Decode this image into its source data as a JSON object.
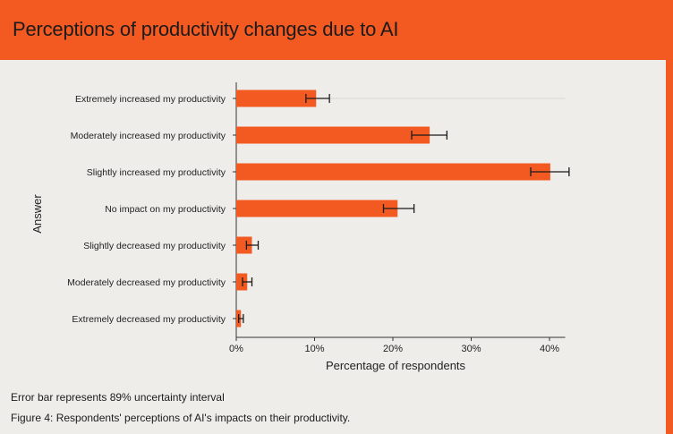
{
  "header": {
    "title": "Perceptions of productivity changes due to AI"
  },
  "notes": {
    "error_bar": "Error bar represents 89% uncertainty interval",
    "caption": "Figure 4: Respondents' perceptions of AI's impacts on their productivity."
  },
  "colors": {
    "bar": "#f35a22",
    "accent": "#f35a22",
    "background": "#efedea"
  },
  "chart_data": {
    "type": "bar",
    "orientation": "horizontal",
    "title": "Perceptions of productivity changes due to AI",
    "xlabel": "Percentage of respondents",
    "ylabel": "Answer",
    "xlim": [
      0,
      42
    ],
    "xticks": [
      0,
      10,
      20,
      30,
      40
    ],
    "xtick_labels": [
      "0%",
      "10%",
      "20%",
      "30%",
      "40%"
    ],
    "categories": [
      "Extremely increased my productivity",
      "Moderately increased my productivity",
      "Slightly increased my productivity",
      "No impact on my productivity",
      "Slightly decreased my productivity",
      "Moderately decreased my productivity",
      "Extremely decreased my productivity"
    ],
    "values": [
      10.2,
      24.7,
      40.1,
      20.6,
      2.0,
      1.4,
      0.6
    ],
    "error_low": [
      8.9,
      22.4,
      37.6,
      18.8,
      1.3,
      0.8,
      0.3
    ],
    "error_high": [
      11.9,
      26.9,
      42.5,
      22.7,
      2.8,
      2.0,
      0.9
    ],
    "grid": true,
    "legend": "none"
  }
}
